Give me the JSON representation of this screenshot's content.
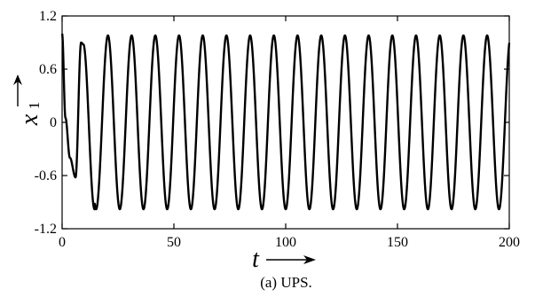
{
  "chart_data": {
    "type": "line",
    "xlabel": "t",
    "ylabel": "x",
    "ylabel_subscript": "1",
    "xlim": [
      0,
      200
    ],
    "ylim": [
      -1.2,
      1.2
    ],
    "x_ticks": [
      0,
      50,
      100,
      150,
      200
    ],
    "x_tick_labels": [
      "0",
      "50",
      "100",
      "150",
      "200"
    ],
    "y_ticks": [
      1.2,
      0.6,
      0,
      -0.6,
      -1.2
    ],
    "y_tick_labels": [
      "1.2",
      "0.6",
      "0",
      "-0.6",
      "-1.2"
    ],
    "grid": false,
    "series": [
      {
        "color": "#000000",
        "x": [
          0,
          1.5,
          3.5,
          6,
          8.5,
          9.5,
          14.5,
          20,
          25,
          30,
          35
        ],
        "y": [
          1.0,
          0.05,
          -0.4,
          -0.62,
          0.9,
          0.88,
          -0.98,
          0.98,
          -0.98,
          0.98,
          -0.98
        ],
        "steady_state_amplitude": 0.98,
        "steady_state_period": 10.6,
        "x_end": 200
      }
    ]
  },
  "caption": "(a) UPS."
}
